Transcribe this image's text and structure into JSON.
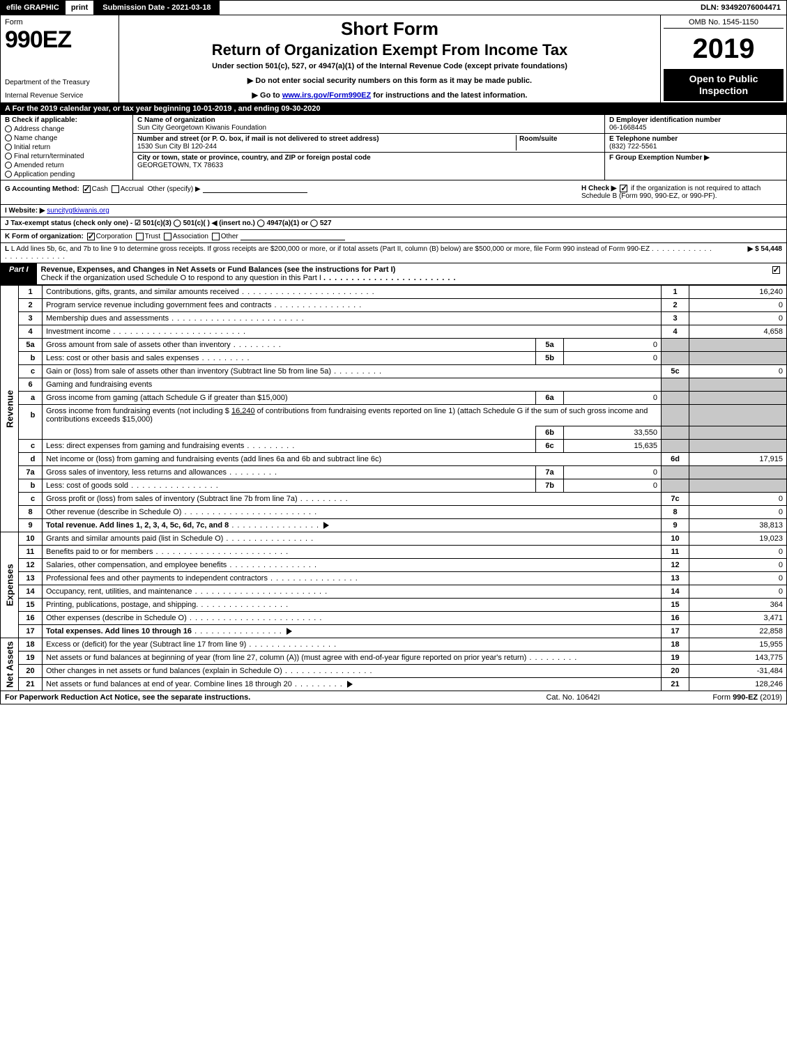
{
  "topbar": {
    "efile": "efile",
    "graphic": "GRAPHIC",
    "print": "print",
    "submission_date_label": "Submission Date - 2021-03-18",
    "dln": "DLN: 93492076004471"
  },
  "header": {
    "form_label": "Form",
    "form_number": "990EZ",
    "department": "Department of the Treasury",
    "irs": "Internal Revenue Service",
    "short_form": "Short Form",
    "return_title": "Return of Organization Exempt From Income Tax",
    "under_section": "Under section 501(c), 527, or 4947(a)(1) of the Internal Revenue Code (except private foundations)",
    "no_ssn": "▶ Do not enter social security numbers on this form as it may be made public.",
    "goto": "▶ Go to www.irs.gov/Form990EZ for instructions and the latest information.",
    "goto_link_text": "www.irs.gov/Form990EZ",
    "goto_prefix": "▶ Go to ",
    "goto_suffix": " for instructions and the latest information.",
    "omb": "OMB No. 1545-1150",
    "year": "2019",
    "open_public": "Open to Public Inspection"
  },
  "rowA": "A  For the 2019 calendar year, or tax year beginning 10-01-2019 , and ending 09-30-2020",
  "colB": {
    "header": "B  Check if applicable:",
    "opts": [
      "Address change",
      "Name change",
      "Initial return",
      "Final return/terminated",
      "Amended return",
      "Application pending"
    ]
  },
  "colC": {
    "name_label": "C Name of organization",
    "name": "Sun City Georgetown Kiwanis Foundation",
    "street_label": "Number and street (or P. O. box, if mail is not delivered to street address)",
    "street": "1530 Sun City Bl 120-244",
    "room_label": "Room/suite",
    "city_label": "City or town, state or province, country, and ZIP or foreign postal code",
    "city": "GEORGETOWN, TX  78633"
  },
  "colDEF": {
    "d_label": "D Employer identification number",
    "d_value": "06-1668445",
    "e_label": "E Telephone number",
    "e_value": "(832) 722-5561",
    "f_label": "F Group Exemption Number  ▶"
  },
  "rowG": {
    "label": "G Accounting Method:",
    "cash": "Cash",
    "accrual": "Accrual",
    "other": "Other (specify) ▶"
  },
  "rowH": {
    "text1": "H  Check ▶",
    "text2": " if the organization is not required to attach Schedule B (Form 990, 990-EZ, or 990-PF)."
  },
  "rowI": {
    "label": "I Website: ▶",
    "value": "suncitygtkiwanis.org"
  },
  "rowJ": "J Tax-exempt status (check only one) - ☑ 501(c)(3)  ◯ 501(c)(  ) ◀ (insert no.)  ◯ 4947(a)(1) or  ◯ 527",
  "rowK": {
    "label": "K Form of organization:",
    "corp": "Corporation",
    "trust": "Trust",
    "assoc": "Association",
    "other": "Other"
  },
  "rowL": {
    "text": "L Add lines 5b, 6c, and 7b to line 9 to determine gross receipts. If gross receipts are $200,000 or more, or if total assets (Part II, column (B) below) are $500,000 or more, file Form 990 instead of Form 990-EZ",
    "amount_label": "▶ $ 54,448"
  },
  "partI": {
    "tag": "Part I",
    "title": "Revenue, Expenses, and Changes in Net Assets or Fund Balances (see the instructions for Part I)",
    "subtitle": "Check if the organization used Schedule O to respond to any question in this Part I"
  },
  "revenue_label": "Revenue",
  "expenses_label": "Expenses",
  "netassets_label": "Net Assets",
  "lines": {
    "l1": {
      "num": "1",
      "desc": "Contributions, gifts, grants, and similar amounts received",
      "out": "1",
      "val": "16,240"
    },
    "l2": {
      "num": "2",
      "desc": "Program service revenue including government fees and contracts",
      "out": "2",
      "val": "0"
    },
    "l3": {
      "num": "3",
      "desc": "Membership dues and assessments",
      "out": "3",
      "val": "0"
    },
    "l4": {
      "num": "4",
      "desc": "Investment income",
      "out": "4",
      "val": "4,658"
    },
    "l5a": {
      "num": "5a",
      "desc": "Gross amount from sale of assets other than inventory",
      "in": "5a",
      "inval": "0"
    },
    "l5b": {
      "num": "b",
      "desc": "Less: cost or other basis and sales expenses",
      "in": "5b",
      "inval": "0"
    },
    "l5c": {
      "num": "c",
      "desc": "Gain or (loss) from sale of assets other than inventory (Subtract line 5b from line 5a)",
      "out": "5c",
      "val": "0"
    },
    "l6": {
      "num": "6",
      "desc": "Gaming and fundraising events"
    },
    "l6a": {
      "num": "a",
      "desc": "Gross income from gaming (attach Schedule G if greater than $15,000)",
      "in": "6a",
      "inval": "0"
    },
    "l6b": {
      "num": "b",
      "desc_pre": "Gross income from fundraising events (not including $ ",
      "desc_amt": "16,240",
      "desc_post": " of contributions from fundraising events reported on line 1) (attach Schedule G if the sum of such gross income and contributions exceeds $15,000)",
      "in": "6b",
      "inval": "33,550"
    },
    "l6c": {
      "num": "c",
      "desc": "Less: direct expenses from gaming and fundraising events",
      "in": "6c",
      "inval": "15,635"
    },
    "l6d": {
      "num": "d",
      "desc": "Net income or (loss) from gaming and fundraising events (add lines 6a and 6b and subtract line 6c)",
      "out": "6d",
      "val": "17,915"
    },
    "l7a": {
      "num": "7a",
      "desc": "Gross sales of inventory, less returns and allowances",
      "in": "7a",
      "inval": "0"
    },
    "l7b": {
      "num": "b",
      "desc": "Less: cost of goods sold",
      "in": "7b",
      "inval": "0"
    },
    "l7c": {
      "num": "c",
      "desc": "Gross profit or (loss) from sales of inventory (Subtract line 7b from line 7a)",
      "out": "7c",
      "val": "0"
    },
    "l8": {
      "num": "8",
      "desc": "Other revenue (describe in Schedule O)",
      "out": "8",
      "val": "0"
    },
    "l9": {
      "num": "9",
      "desc": "Total revenue. Add lines 1, 2, 3, 4, 5c, 6d, 7c, and 8",
      "out": "9",
      "val": "38,813"
    },
    "l10": {
      "num": "10",
      "desc": "Grants and similar amounts paid (list in Schedule O)",
      "out": "10",
      "val": "19,023"
    },
    "l11": {
      "num": "11",
      "desc": "Benefits paid to or for members",
      "out": "11",
      "val": "0"
    },
    "l12": {
      "num": "12",
      "desc": "Salaries, other compensation, and employee benefits",
      "out": "12",
      "val": "0"
    },
    "l13": {
      "num": "13",
      "desc": "Professional fees and other payments to independent contractors",
      "out": "13",
      "val": "0"
    },
    "l14": {
      "num": "14",
      "desc": "Occupancy, rent, utilities, and maintenance",
      "out": "14",
      "val": "0"
    },
    "l15": {
      "num": "15",
      "desc": "Printing, publications, postage, and shipping.",
      "out": "15",
      "val": "364"
    },
    "l16": {
      "num": "16",
      "desc": "Other expenses (describe in Schedule O)",
      "out": "16",
      "val": "3,471"
    },
    "l17": {
      "num": "17",
      "desc": "Total expenses. Add lines 10 through 16",
      "out": "17",
      "val": "22,858"
    },
    "l18": {
      "num": "18",
      "desc": "Excess or (deficit) for the year (Subtract line 17 from line 9)",
      "out": "18",
      "val": "15,955"
    },
    "l19": {
      "num": "19",
      "desc": "Net assets or fund balances at beginning of year (from line 27, column (A)) (must agree with end-of-year figure reported on prior year's return)",
      "out": "19",
      "val": "143,775"
    },
    "l20": {
      "num": "20",
      "desc": "Other changes in net assets or fund balances (explain in Schedule O)",
      "out": "20",
      "val": "-31,484"
    },
    "l21": {
      "num": "21",
      "desc": "Net assets or fund balances at end of year. Combine lines 18 through 20",
      "out": "21",
      "val": "128,246"
    }
  },
  "footer": {
    "left": "For Paperwork Reduction Act Notice, see the separate instructions.",
    "mid": "Cat. No. 10642I",
    "right_pre": "Form ",
    "right_form": "990-EZ",
    "right_post": " (2019)"
  },
  "colors": {
    "black": "#000000",
    "white": "#ffffff",
    "shade": "#c8c8c8",
    "link": "#0000cc"
  }
}
